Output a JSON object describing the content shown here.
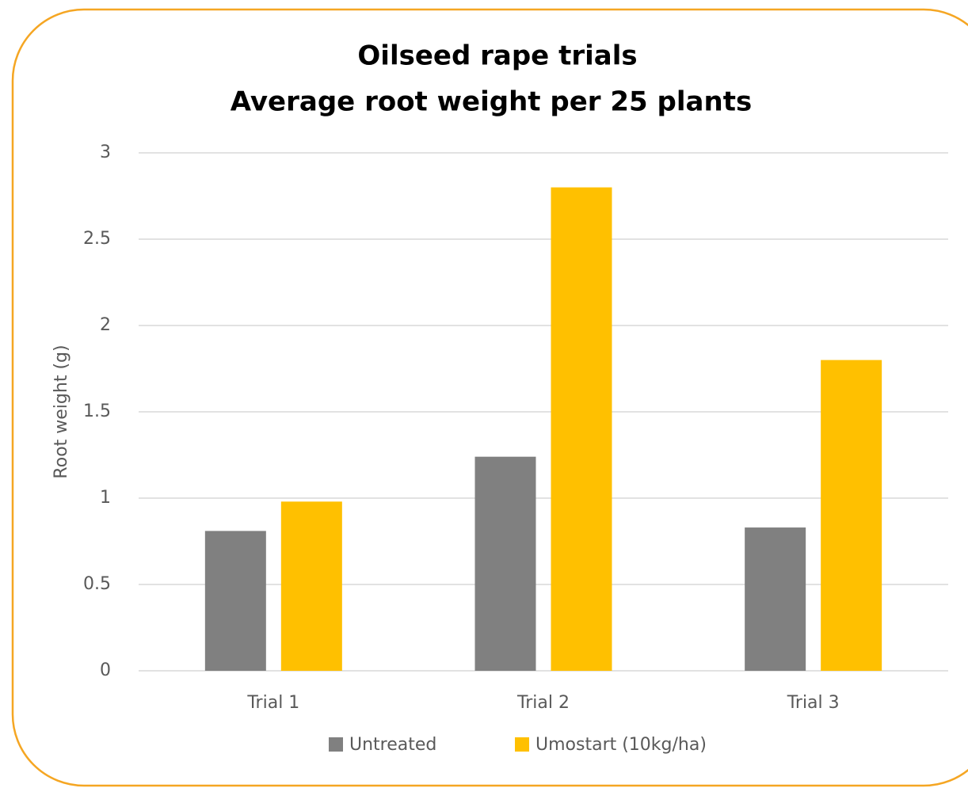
{
  "chart_data": {
    "type": "bar",
    "title": "Oilseed rape trials",
    "subtitle": "Average root weight per 25 plants",
    "ylabel": "Root weight (g)",
    "categories": [
      "Trial 1",
      "Trial 2",
      "Trial 3"
    ],
    "series": [
      {
        "name": "Untreated",
        "color": "#808080",
        "values": [
          0.81,
          1.24,
          0.83
        ]
      },
      {
        "name": "Umostart (10kg/ha)",
        "color": "#ffc000",
        "values": [
          0.98,
          2.8,
          1.8
        ]
      }
    ],
    "ylim": [
      0,
      3
    ],
    "yticks": [
      0,
      0.5,
      1,
      1.5,
      2,
      2.5,
      3
    ],
    "grid": true
  }
}
